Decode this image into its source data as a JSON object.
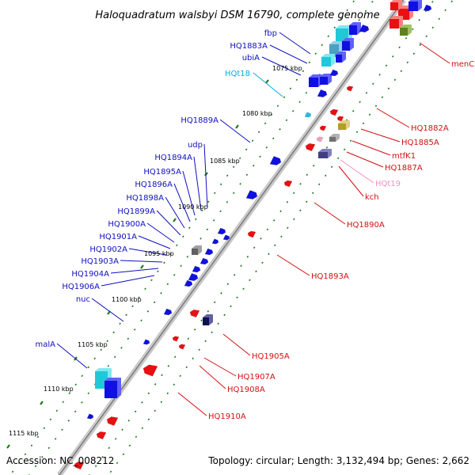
{
  "title": "Haloquadratum walsbyi DSM 16790, complete genome",
  "footer": {
    "accession": "Accession: NC_008212",
    "topology": "Topology: circular; Length: 3,132,494 bp; Genes: 2,662"
  },
  "colors": {
    "plus_strand": "#1010e0",
    "minus_strand": "#e81010",
    "rna_label": "#00aee0",
    "ticks": "#1a7a1a",
    "backbone": "#909090"
  },
  "kbp_labels": [
    "1075 kbp",
    "1080 kbp",
    "1085 kbp",
    "1090 kbp",
    "1095 kbp",
    "1100 kbp",
    "1105 kbp",
    "1110 kbp",
    "1115 kbp"
  ],
  "left_labels": [
    {
      "text": "fbp",
      "color": "#1010c0"
    },
    {
      "text": "HQ1883A",
      "color": "#1010c0"
    },
    {
      "text": "ubiA",
      "color": "#1010c0"
    },
    {
      "text": "HQt18",
      "color": "#00aee0"
    },
    {
      "text": "HQ1889A",
      "color": "#1010c0"
    },
    {
      "text": "udp",
      "color": "#1010c0"
    },
    {
      "text": "HQ1894A",
      "color": "#1010c0"
    },
    {
      "text": "HQ1895A",
      "color": "#1010c0"
    },
    {
      "text": "HQ1896A",
      "color": "#1010c0"
    },
    {
      "text": "HQ1898A",
      "color": "#1010c0"
    },
    {
      "text": "HQ1899A",
      "color": "#1010c0"
    },
    {
      "text": "HQ1900A",
      "color": "#1010c0"
    },
    {
      "text": "HQ1901A",
      "color": "#1010c0"
    },
    {
      "text": "HQ1902A",
      "color": "#1010c0"
    },
    {
      "text": "HQ1903A",
      "color": "#1010c0"
    },
    {
      "text": "HQ1904A",
      "color": "#1010c0"
    },
    {
      "text": "HQ1906A",
      "color": "#1010c0"
    },
    {
      "text": "nuc",
      "color": "#1010c0"
    },
    {
      "text": "malA",
      "color": "#1010c0"
    }
  ],
  "right_labels": [
    {
      "text": "menC",
      "color": "#d01010"
    },
    {
      "text": "HQ1882A",
      "color": "#d01010"
    },
    {
      "text": "HQ1885A",
      "color": "#d01010"
    },
    {
      "text": "mtfK1",
      "color": "#d01010"
    },
    {
      "text": "HQ1887A",
      "color": "#d01010"
    },
    {
      "text": "HQt19",
      "color": "#f090c0"
    },
    {
      "text": "kch",
      "color": "#d01010"
    },
    {
      "text": "HQ1890A",
      "color": "#d01010"
    },
    {
      "text": "HQ1893A",
      "color": "#d01010"
    },
    {
      "text": "HQ1905A",
      "color": "#d01010"
    },
    {
      "text": "HQ1907A",
      "color": "#d01010"
    },
    {
      "text": "HQ1908A",
      "color": "#d01010"
    },
    {
      "text": "HQ1910A",
      "color": "#d01010"
    }
  ]
}
